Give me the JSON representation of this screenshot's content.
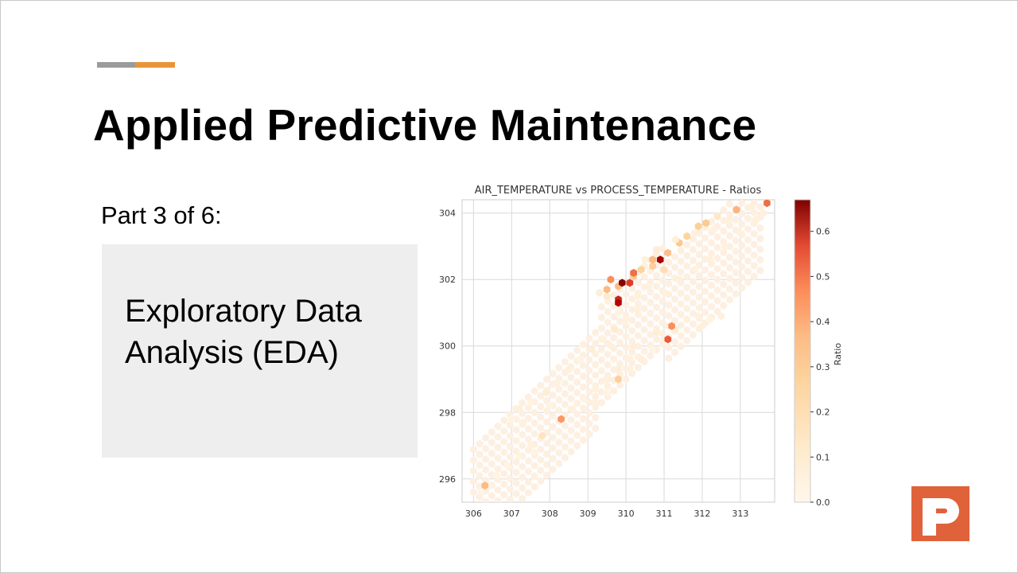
{
  "slide": {
    "title": "Applied Predictive Maintenance",
    "subtitle": "Part 3 of 6:",
    "topic": "Exploratory Data Analysis (EDA)"
  },
  "colors": {
    "accent_grey": "#9b9b9b",
    "accent_orange": "#e8953a",
    "logo_orange": "#e0623a",
    "topic_box": "#eeeeee"
  },
  "logo": {
    "icon": "p-logo-icon"
  },
  "chart_data": {
    "type": "heatmap",
    "subtype": "hexbin",
    "title": "AIR_TEMPERATURE vs PROCESS_TEMPERATURE - Ratios",
    "xlabel": "",
    "ylabel": "",
    "xlim": [
      305.7,
      313.9
    ],
    "ylim": [
      295.3,
      304.4
    ],
    "xticks": [
      "306",
      "307",
      "308",
      "309",
      "310",
      "311",
      "312",
      "313"
    ],
    "yticks": [
      "296",
      "298",
      "300",
      "302",
      "304"
    ],
    "grid": true,
    "colormap": "OrRd",
    "colorbar": {
      "label": "Ratio",
      "range": [
        0,
        0.67
      ],
      "ticks": [
        "0.0",
        "0.1",
        "0.2",
        "0.3",
        "0.4",
        "0.5",
        "0.6"
      ]
    },
    "points": [
      [
        306.2,
        295.6,
        0.02
      ],
      [
        306.4,
        295.8,
        0.02
      ],
      [
        306.3,
        295.8,
        0.3
      ],
      [
        306.6,
        296.1,
        0.03
      ],
      [
        306.9,
        296.4,
        0.03
      ],
      [
        307.2,
        296.7,
        0.03
      ],
      [
        307.5,
        297.0,
        0.04
      ],
      [
        307.8,
        297.3,
        0.12
      ],
      [
        307.6,
        296.8,
        0.03
      ],
      [
        307.3,
        297.7,
        0.04
      ],
      [
        307.0,
        297.8,
        0.03
      ],
      [
        307.2,
        298.1,
        0.05
      ],
      [
        307.5,
        298.3,
        0.03
      ],
      [
        307.9,
        298.6,
        0.06
      ],
      [
        308.2,
        298.9,
        0.04
      ],
      [
        308.0,
        298.2,
        0.03
      ],
      [
        308.3,
        297.8,
        0.38
      ],
      [
        308.6,
        298.1,
        0.04
      ],
      [
        308.9,
        298.4,
        0.03
      ],
      [
        309.2,
        298.7,
        0.04
      ],
      [
        309.5,
        299.0,
        0.05
      ],
      [
        309.8,
        299.3,
        0.06
      ],
      [
        310.1,
        299.6,
        0.04
      ],
      [
        308.5,
        299.3,
        0.05
      ],
      [
        308.8,
        299.6,
        0.03
      ],
      [
        309.1,
        299.9,
        0.06
      ],
      [
        309.4,
        300.2,
        0.04
      ],
      [
        309.7,
        300.5,
        0.08
      ],
      [
        310.0,
        300.8,
        0.04
      ],
      [
        310.3,
        301.1,
        0.05
      ],
      [
        309.2,
        298.3,
        0.04
      ],
      [
        309.5,
        298.6,
        0.03
      ],
      [
        309.8,
        299.0,
        0.22
      ],
      [
        310.1,
        299.3,
        0.04
      ],
      [
        310.4,
        299.6,
        0.05
      ],
      [
        310.7,
        299.9,
        0.03
      ],
      [
        311.0,
        300.2,
        0.04
      ],
      [
        311.3,
        300.5,
        0.06
      ],
      [
        311.6,
        300.8,
        0.05
      ],
      [
        311.9,
        300.9,
        0.04
      ],
      [
        312.2,
        300.8,
        0.03
      ],
      [
        312.5,
        300.9,
        0.04
      ],
      [
        312.0,
        300.6,
        0.05
      ],
      [
        311.1,
        300.2,
        0.48
      ],
      [
        311.2,
        300.6,
        0.4
      ],
      [
        310.8,
        300.4,
        0.06
      ],
      [
        310.2,
        300.0,
        0.06
      ],
      [
        309.6,
        300.0,
        0.04
      ],
      [
        309.8,
        301.0,
        0.03
      ],
      [
        310.3,
        301.5,
        0.05
      ],
      [
        310.6,
        301.8,
        0.04
      ],
      [
        309.5,
        301.5,
        0.08
      ],
      [
        309.8,
        301.8,
        0.3
      ],
      [
        309.9,
        301.9,
        0.66
      ],
      [
        310.1,
        301.9,
        0.52
      ],
      [
        309.6,
        302.0,
        0.4
      ],
      [
        309.5,
        301.7,
        0.3
      ],
      [
        309.8,
        301.4,
        0.55
      ],
      [
        309.8,
        301.3,
        0.6
      ],
      [
        310.2,
        302.1,
        0.25
      ],
      [
        310.4,
        302.3,
        0.2
      ],
      [
        310.7,
        302.4,
        0.22
      ],
      [
        310.9,
        302.6,
        0.62
      ],
      [
        311.1,
        302.8,
        0.28
      ],
      [
        311.4,
        303.1,
        0.25
      ],
      [
        311.6,
        303.3,
        0.2
      ],
      [
        311.9,
        303.6,
        0.22
      ],
      [
        312.1,
        303.7,
        0.24
      ],
      [
        312.4,
        303.9,
        0.1
      ],
      [
        312.9,
        304.1,
        0.32
      ],
      [
        313.3,
        304.2,
        0.05
      ],
      [
        313.7,
        304.3,
        0.45
      ],
      [
        310.5,
        302.6,
        0.05
      ],
      [
        310.8,
        302.9,
        0.06
      ],
      [
        311.3,
        303.2,
        0.05
      ],
      [
        311.8,
        303.4,
        0.04
      ],
      [
        312.3,
        303.5,
        0.04
      ],
      [
        312.7,
        303.8,
        0.05
      ],
      [
        311.0,
        301.6,
        0.04
      ],
      [
        311.4,
        302.0,
        0.05
      ],
      [
        311.8,
        302.3,
        0.04
      ],
      [
        312.2,
        302.6,
        0.05
      ],
      [
        312.6,
        303.0,
        0.04
      ],
      [
        313.0,
        303.4,
        0.04
      ],
      [
        313.4,
        303.8,
        0.05
      ],
      [
        313.6,
        304.0,
        0.04
      ],
      [
        310.2,
        302.2,
        0.45
      ],
      [
        310.7,
        302.6,
        0.3
      ],
      [
        311.0,
        302.3,
        0.15
      ],
      [
        309.3,
        301.6,
        0.06
      ]
    ]
  }
}
